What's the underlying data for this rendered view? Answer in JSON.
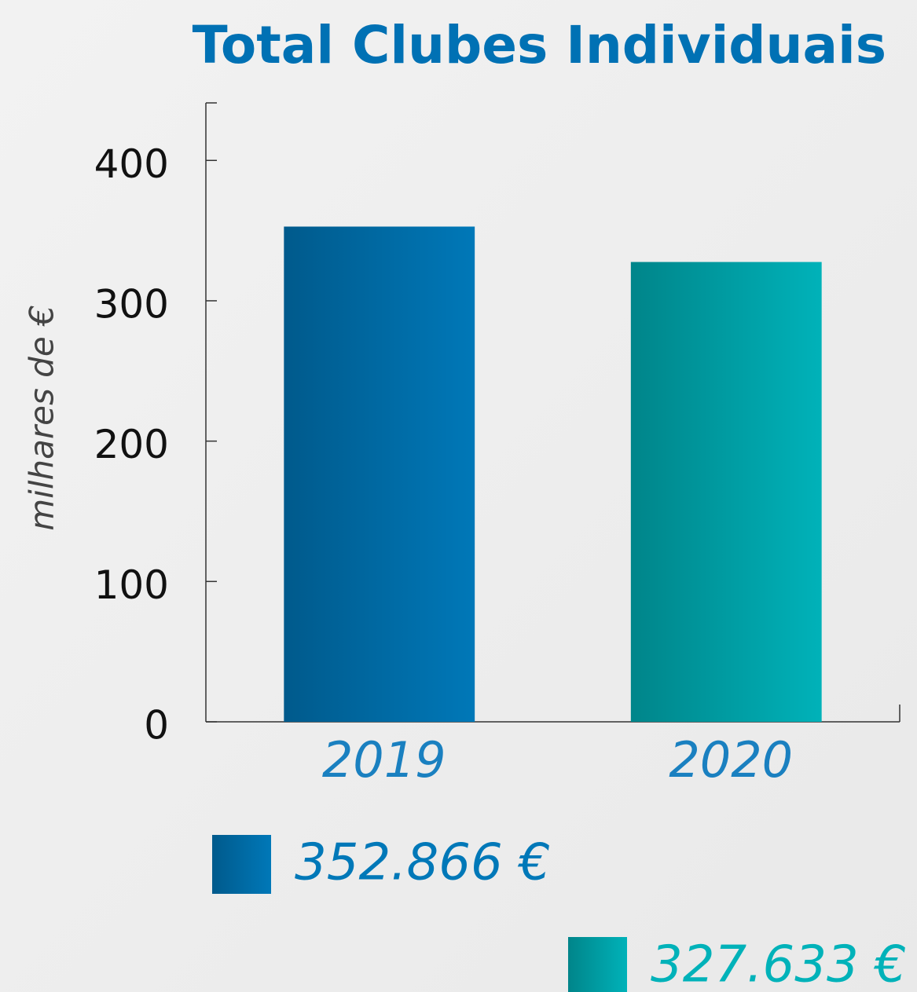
{
  "chart_data": {
    "type": "bar",
    "title": "Total Clubes Individuais",
    "y_label": "milhares de €",
    "categories": [
      "2019",
      "2020"
    ],
    "values": [
      352.866,
      327.633
    ],
    "value_labels": [
      "352.866 €",
      "327.633 €"
    ],
    "colors": [
      [
        "#005a8c",
        "#0078b8"
      ],
      [
        "#00858a",
        "#00b2b9"
      ]
    ],
    "ylim": [
      0,
      441
    ],
    "yticks": [
      0,
      100,
      200,
      300,
      400
    ]
  }
}
